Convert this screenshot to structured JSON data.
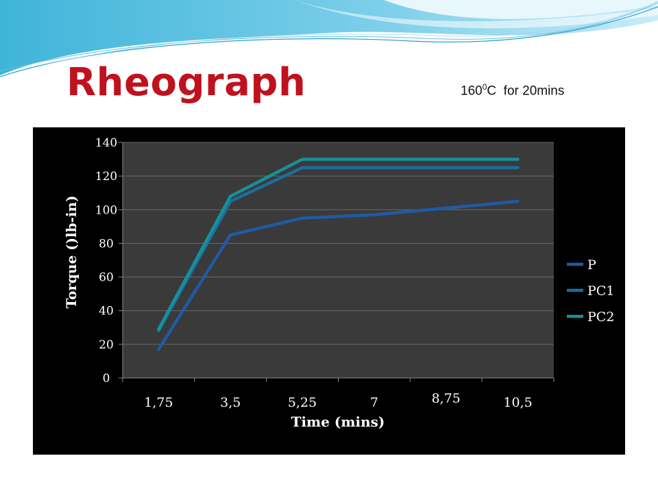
{
  "slide": {
    "title": "Rheograph",
    "subtitle_prefix": "160",
    "subtitle_sup": "0",
    "subtitle_suffix": "C  for 20mins"
  },
  "colors": {
    "title": "#c0111f",
    "chart_background": "#000000",
    "plot_area": "#3a3a3a",
    "gridline": "#6a6a6a",
    "text": "#ffffff",
    "P": "#1f5aa6",
    "PC1": "#1a6f9e",
    "PC2": "#17909a"
  },
  "chart_data": {
    "type": "line",
    "categories": [
      "1,75",
      "3,5",
      "5,25",
      "7",
      "8,75",
      "10,5"
    ],
    "x": [
      1.75,
      3.5,
      5.25,
      7,
      8.75,
      10.5
    ],
    "series": [
      {
        "name": "P",
        "values": [
          17,
          85,
          95,
          97,
          101,
          105
        ]
      },
      {
        "name": "PC1",
        "values": [
          28,
          105,
          125,
          125,
          125,
          125
        ]
      },
      {
        "name": "PC2",
        "values": [
          29,
          108,
          130,
          130,
          130,
          130
        ]
      }
    ],
    "xlabel": "Time (mins)",
    "ylabel": "Torque ()lb-in)",
    "ylim": [
      0,
      140
    ],
    "yticks": [
      0,
      20,
      40,
      60,
      80,
      100,
      120,
      140
    ],
    "grid": true,
    "legend": "right"
  }
}
